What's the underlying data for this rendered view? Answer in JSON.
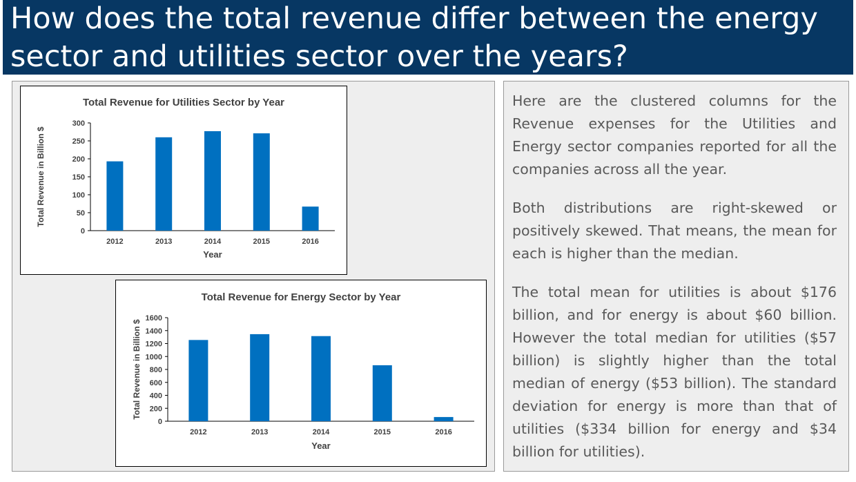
{
  "slide": {
    "title": "How does the total revenue differ between the energy sector and utilities sector over the years?"
  },
  "text_panel": {
    "paragraphs": [
      "Here are the clustered columns for the Revenue expenses for the Utilities and Energy sector companies reported for all the companies across all the year.",
      "Both distributions are right-skewed or positively skewed. That means, the mean for each is higher than the median.",
      "The total mean for utilities is about $176 billion, and for energy is about $60 billion. However the total median for utilities ($57 billion) is slightly higher than the total median of energy ($53 billion). The standard deviation for energy is more than that of utilities ($334 billion for energy and $34 billion for utilities)."
    ]
  },
  "colors": {
    "header_bg": "#073763",
    "bar": "#0070C0",
    "panel_bg": "#eeeeee"
  },
  "chart_data": [
    {
      "type": "bar",
      "title": "Total Revenue for Utilities Sector by Year",
      "xlabel": "Year",
      "ylabel": "Total Revenue in Billion $",
      "categories": [
        "2012",
        "2013",
        "2014",
        "2015",
        "2016"
      ],
      "values": [
        193,
        260,
        277,
        271,
        67
      ],
      "ylim": [
        0,
        300
      ],
      "yticks": [
        0,
        50,
        100,
        150,
        200,
        250,
        300
      ],
      "grid": false,
      "legend": "none"
    },
    {
      "type": "bar",
      "title": "Total Revenue for Energy Sector by Year",
      "xlabel": "Year",
      "ylabel": "Total Revenue in Billion $",
      "categories": [
        "2012",
        "2013",
        "2014",
        "2015",
        "2016"
      ],
      "values": [
        1255,
        1345,
        1315,
        865,
        65
      ],
      "ylim": [
        0,
        1600
      ],
      "yticks": [
        0,
        200,
        400,
        600,
        800,
        1000,
        1200,
        1400,
        1600
      ],
      "grid": false,
      "legend": "none"
    }
  ]
}
